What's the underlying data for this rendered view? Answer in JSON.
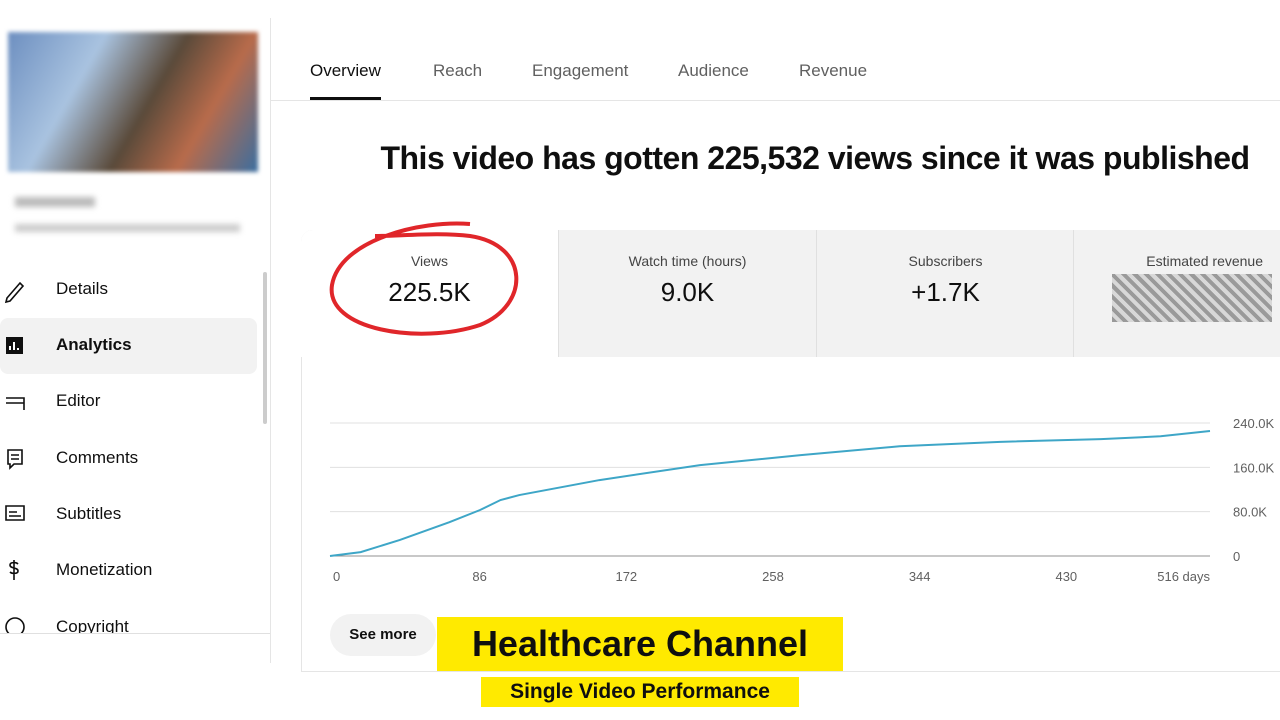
{
  "tabs": [
    "Overview",
    "Reach",
    "Engagement",
    "Audience",
    "Revenue"
  ],
  "headline": "This video has gotten 225,532 views since it was published",
  "metrics": [
    {
      "label": "Views",
      "value": "225.5K"
    },
    {
      "label": "Watch time (hours)",
      "value": "9.0K"
    },
    {
      "label": "Subscribers",
      "value": "+1.7K"
    },
    {
      "label": "Estimated revenue"
    }
  ],
  "sidebar": [
    "Details",
    "Analytics",
    "Editor",
    "Comments",
    "Subtitles",
    "Monetization",
    "Copyright"
  ],
  "chart_data": {
    "type": "line",
    "x": [
      0,
      18,
      41,
      70,
      88,
      100,
      111,
      158,
      217,
      276,
      334,
      393,
      452,
      487,
      516
    ],
    "values": [
      0,
      7000,
      29000,
      61000,
      83000,
      101000,
      110000,
      137000,
      164000,
      182000,
      198000,
      206000,
      211000,
      216000,
      225532
    ],
    "color": "#3ea6c7",
    "xlim": [
      0,
      516
    ],
    "xticks": [
      0,
      86,
      172,
      258,
      344,
      430,
      {
        "value": 516,
        "label": "516 days"
      }
    ],
    "ylim": [
      0,
      240000
    ],
    "yticks": [
      0,
      {
        "value": 80000,
        "label": "80.0K"
      },
      {
        "value": 160000,
        "label": "160.0K"
      },
      {
        "value": 240000,
        "label": "240.0K"
      }
    ],
    "grid": true
  },
  "button": "See more",
  "overlay": {
    "title": "Healthcare Channel",
    "subtitle": "Single Video Performance"
  }
}
